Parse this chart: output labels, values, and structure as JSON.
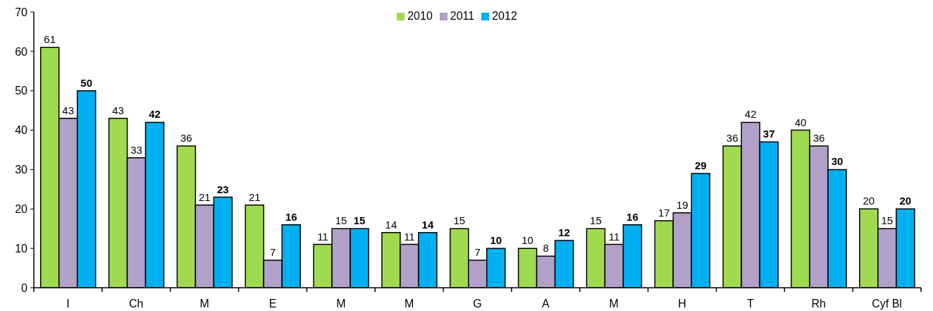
{
  "chart_data": {
    "type": "bar",
    "categories": [
      "I",
      "Ch",
      "M",
      "E",
      "M",
      "M",
      "G",
      "A",
      "M",
      "H",
      "T",
      "Rh",
      "Cyf Bl"
    ],
    "series": [
      {
        "name": "2010",
        "color": "#a0da50",
        "values": [
          61,
          43,
          36,
          21,
          11,
          14,
          15,
          10,
          15,
          17,
          36,
          40,
          20
        ]
      },
      {
        "name": "2011",
        "color": "#b1a0c7",
        "values": [
          43,
          33,
          21,
          7,
          15,
          11,
          7,
          8,
          11,
          19,
          42,
          36,
          15
        ]
      },
      {
        "name": "2012",
        "color": "#00b0f0",
        "values": [
          50,
          42,
          23,
          16,
          15,
          14,
          10,
          12,
          16,
          29,
          37,
          30,
          20
        ]
      }
    ],
    "ylim": [
      0,
      70
    ],
    "yticks": [
      0,
      10,
      20,
      30,
      40,
      50,
      60,
      70
    ],
    "grid": false,
    "legend": "top",
    "data_labels": true
  }
}
